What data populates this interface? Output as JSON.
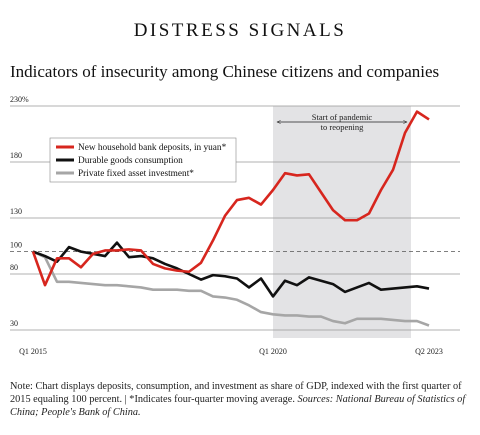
{
  "chart_data": {
    "type": "line",
    "title": "DISTRESS SIGNALS",
    "subtitle": "Indicators of insecurity among Chinese citizens and companies",
    "categories": [
      "Q1 2015",
      null,
      null,
      null,
      null,
      null,
      null,
      null,
      null,
      null,
      null,
      null,
      null,
      null,
      null,
      null,
      null,
      null,
      null,
      null,
      "Q1 2020",
      null,
      null,
      null,
      null,
      null,
      null,
      null,
      null,
      null,
      null,
      null,
      null,
      "Q2 2023"
    ],
    "series": [
      {
        "name": "New household bank deposits, in yuan*",
        "color": "#d7261e",
        "values": [
          100,
          70,
          94,
          94,
          86,
          98,
          101,
          101,
          102,
          101,
          89,
          85,
          83,
          82,
          90,
          110,
          132,
          146,
          148,
          142,
          155,
          170,
          168,
          169,
          153,
          137,
          128,
          128,
          134,
          155,
          173,
          206,
          225,
          218
        ]
      },
      {
        "name": "Durable goods consumption",
        "color": "#111111",
        "values": [
          100,
          96,
          91,
          104,
          100,
          98,
          96,
          108,
          95,
          96,
          94,
          89,
          85,
          80,
          75,
          79,
          78,
          76,
          68,
          76,
          60,
          74,
          70,
          77,
          74,
          71,
          64,
          68,
          72,
          66,
          67,
          68,
          69,
          67
        ]
      },
      {
        "name": "Private fixed asset investment*",
        "color": "#a6a6a6",
        "values": [
          100,
          95,
          73,
          73,
          72,
          71,
          70,
          70,
          69,
          68,
          66,
          66,
          66,
          65,
          65,
          60,
          59,
          57,
          52,
          46,
          44,
          43,
          43,
          42,
          42,
          38,
          36,
          40,
          40,
          40,
          39,
          38,
          38,
          34
        ]
      }
    ],
    "ylim": [
      30,
      230
    ],
    "yticks": [
      30,
      80,
      100,
      130,
      180,
      {
        "value": 230,
        "label": "230%"
      }
    ],
    "baseline": 100,
    "grid": true,
    "legend": "upper left",
    "highlight": {
      "from": 20,
      "to": 31.5,
      "label_lines": [
        "Start of pandemic",
        "to reopening"
      ],
      "color": "#e3e3e5"
    },
    "note": "Note: Chart displays deposits, consumption, and investment as share of GDP, indexed with the first quarter of 2015 equaling 100 percent. | *Indicates four-quarter moving average.",
    "sources": "Sources: National Bureau of Statistics of China; People's Bank of China."
  }
}
